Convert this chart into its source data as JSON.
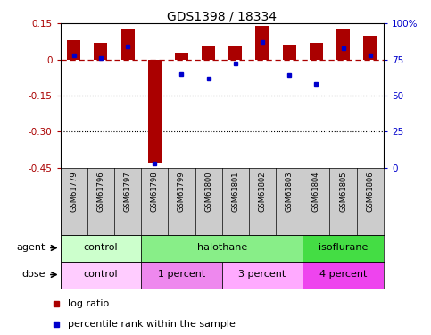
{
  "title": "GDS1398 / 18334",
  "samples": [
    "GSM61779",
    "GSM61796",
    "GSM61797",
    "GSM61798",
    "GSM61799",
    "GSM61800",
    "GSM61801",
    "GSM61802",
    "GSM61803",
    "GSM61804",
    "GSM61805",
    "GSM61806"
  ],
  "log_ratio": [
    0.08,
    0.07,
    0.13,
    -0.43,
    0.03,
    0.055,
    0.055,
    0.14,
    0.06,
    0.07,
    0.13,
    0.1
  ],
  "percentile": [
    78,
    76,
    84,
    3,
    65,
    62,
    72,
    87,
    64,
    58,
    83,
    78
  ],
  "ylim": [
    -0.45,
    0.15
  ],
  "yticks": [
    0.15,
    0.0,
    -0.15,
    -0.3,
    -0.45
  ],
  "ytick_labels": [
    "0.15",
    "0",
    "-0.15",
    "-0.30",
    "-0.45"
  ],
  "right_yticks": [
    100,
    75,
    50,
    25,
    0
  ],
  "right_ytick_labels": [
    "100%",
    "75",
    "50",
    "25",
    "0"
  ],
  "hline_y": 0.0,
  "dotted_lines": [
    -0.15,
    -0.3
  ],
  "bar_width": 0.5,
  "bar_color_red": "#aa0000",
  "bar_color_blue": "#0000cc",
  "agent_groups": [
    {
      "label": "control",
      "start": 0,
      "end": 3,
      "color": "#ccffcc"
    },
    {
      "label": "halothane",
      "start": 3,
      "end": 9,
      "color": "#88ee88"
    },
    {
      "label": "isoflurane",
      "start": 9,
      "end": 12,
      "color": "#44dd44"
    }
  ],
  "dose_groups": [
    {
      "label": "control",
      "start": 0,
      "end": 3,
      "color": "#ffccff"
    },
    {
      "label": "1 percent",
      "start": 3,
      "end": 6,
      "color": "#ee88ee"
    },
    {
      "label": "3 percent",
      "start": 6,
      "end": 9,
      "color": "#ffaaff"
    },
    {
      "label": "4 percent",
      "start": 9,
      "end": 12,
      "color": "#ee44ee"
    }
  ],
  "legend_red_label": "log ratio",
  "legend_blue_label": "percentile rank within the sample",
  "agent_label": "agent",
  "dose_label": "dose",
  "title_fontsize": 10,
  "label_fontsize": 8,
  "tick_fontsize": 7.5,
  "sample_fontsize": 6,
  "group_fontsize": 8
}
